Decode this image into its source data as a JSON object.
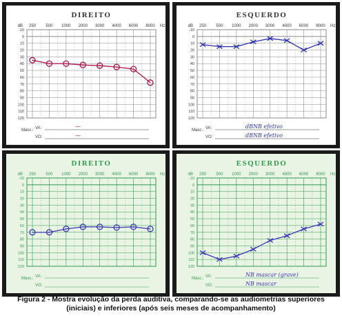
{
  "freqs": [
    "250",
    "500",
    "1000",
    "2000",
    "3000",
    "4000",
    "6000",
    "8000"
  ],
  "unit_db": "dB",
  "unit_hz": "Hz",
  "db_ticks": [
    "-10",
    "0",
    "10",
    "20",
    "30",
    "40",
    "50",
    "60",
    "70",
    "80",
    "90",
    "100",
    "110",
    "120"
  ],
  "masc_label": "Masc.:",
  "va_label": "VA:",
  "vo_label": "VO:",
  "colors": {
    "white_grid": "#8a8a8a",
    "green_grid": "#2e9a4e",
    "right_ear": "#b0124a",
    "left_ear": "#2a2fb0",
    "pen_blue": "#3b35b8",
    "frame": "#1a1a1a"
  },
  "caption_line1": "Figura 2 - Mostra evolução da perda auditiva, comparando-se as audiometrias superiores",
  "caption_line2": "(iniciais) e inferiores (após seis meses de acompanhamento)",
  "chart_data": [
    {
      "type": "line",
      "title": "DIREITO",
      "xlabel": "Hz",
      "ylabel": "dB",
      "ylim": [
        -10,
        120
      ],
      "y_inverted": true,
      "categories": [
        "250",
        "500",
        "1000",
        "2000",
        "3000",
        "4000",
        "6000",
        "8000"
      ],
      "series": [
        {
          "marker": "circle",
          "values": [
            35,
            40,
            40,
            42,
            43,
            45,
            48,
            68
          ]
        }
      ],
      "annotations": {
        "va": "—",
        "vo": "—"
      }
    },
    {
      "type": "line",
      "title": "ESQUERDO",
      "xlabel": "Hz",
      "ylabel": "dB",
      "ylim": [
        -10,
        120
      ],
      "y_inverted": true,
      "categories": [
        "250",
        "500",
        "1000",
        "2000",
        "3000",
        "4000",
        "6000",
        "8000"
      ],
      "series": [
        {
          "marker": "x",
          "values": [
            12,
            15,
            15,
            8,
            3,
            6,
            20,
            10
          ]
        }
      ],
      "annotations": {
        "va": "dBNB efetivo",
        "vo": "dBNB efetivo"
      }
    },
    {
      "type": "line",
      "title": "DIREITO",
      "xlabel": "Hz",
      "ylabel": "dB",
      "ylim": [
        -10,
        120
      ],
      "y_inverted": true,
      "categories": [
        "250",
        "500",
        "1000",
        "2000",
        "3000",
        "4000",
        "6000",
        "8000"
      ],
      "series": [
        {
          "marker": "circle",
          "values": [
            70,
            70,
            65,
            62,
            62,
            63,
            62,
            65
          ]
        }
      ],
      "annotations": {
        "va": "",
        "vo": ""
      }
    },
    {
      "type": "line",
      "title": "ESQUERDO",
      "xlabel": "Hz",
      "ylabel": "dB",
      "ylim": [
        -10,
        120
      ],
      "y_inverted": true,
      "categories": [
        "250",
        "500",
        "1000",
        "2000",
        "3000",
        "4000",
        "6000",
        "8000"
      ],
      "series": [
        {
          "marker": "x",
          "values": [
            100,
            110,
            105,
            95,
            82,
            75,
            65,
            58
          ]
        }
      ],
      "annotations": {
        "va": "NB mascar (grave)",
        "vo": "NB mascar"
      }
    }
  ]
}
